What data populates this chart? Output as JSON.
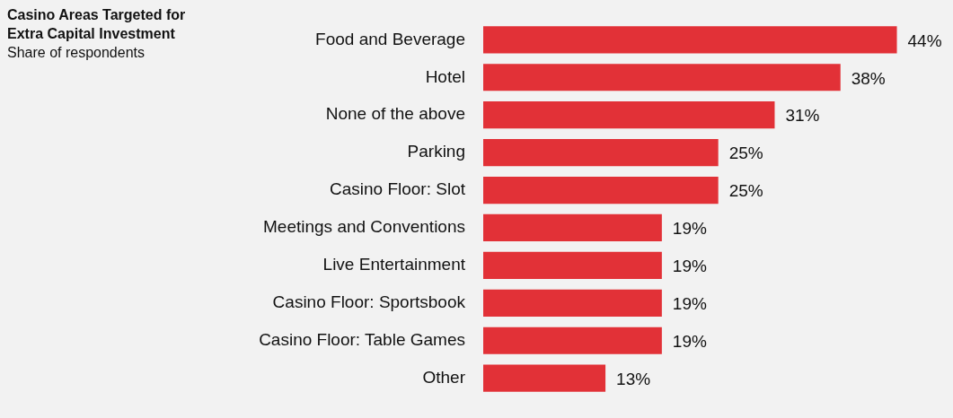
{
  "chart_data": {
    "type": "bar",
    "orientation": "horizontal",
    "title": "Casino Areas Targeted for Extra Capital Investment",
    "subtitle": "Share of respondents",
    "categories": [
      "Food and Beverage",
      "Hotel",
      "None of the above",
      "Parking",
      "Casino Floor: Slot",
      "Meetings and Conventions",
      "Live Entertainment",
      "Casino Floor: Sportsbook",
      "Casino Floor: Table Games",
      "Other"
    ],
    "values": [
      44,
      38,
      31,
      25,
      25,
      19,
      19,
      19,
      19,
      13
    ],
    "value_labels": [
      "44%",
      "38%",
      "31%",
      "25%",
      "25%",
      "19%",
      "19%",
      "19%",
      "19%",
      "13%"
    ],
    "color": "#e23137",
    "legend": false
  }
}
